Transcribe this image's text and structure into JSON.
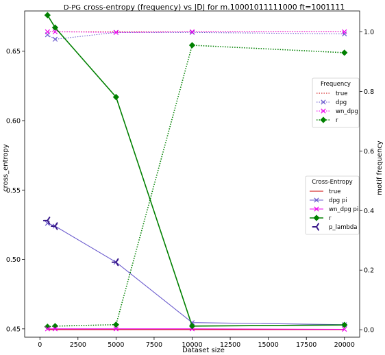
{
  "chart_data": {
    "type": "line",
    "title_prefix": "D-PG",
    "title": "cross-entropy (frequency) vs |D| for m.10001011111000 ft=1001111",
    "xlabel": "Dataset size",
    "ylabel_left": "cross_entropy",
    "ylabel_right": "motif frequency",
    "xlim": [
      -1000,
      21000
    ],
    "ylim_left": [
      0.444,
      0.679
    ],
    "ylim_right": [
      -0.025,
      1.07
    ],
    "x_ticks": [
      0,
      2500,
      5000,
      7500,
      10000,
      12500,
      15000,
      17500,
      20000
    ],
    "y_ticks_left": [
      0.45,
      0.5,
      0.55,
      0.6,
      0.65
    ],
    "y_ticks_right": [
      0.0,
      0.2,
      0.4,
      0.6,
      0.8,
      1.0
    ],
    "legend_frequency": {
      "title": "Frequency",
      "placement": "center-right",
      "series": [
        {
          "name": "true",
          "color": "#cc0000",
          "dash": "dotted",
          "marker": "none",
          "x": [
            500,
            1000,
            5000,
            10000,
            20000
          ],
          "values": [
            1.0,
            1.0,
            1.0,
            1.0,
            1.0
          ]
        },
        {
          "name": "dpg",
          "color": "#6a5acd",
          "dash": "dotted",
          "marker": "x",
          "x": [
            500,
            1000,
            5000,
            10000,
            20000
          ],
          "values": [
            0.99,
            0.975,
            0.998,
            0.998,
            0.993
          ]
        },
        {
          "name": "wn_dpg",
          "color": "#ee00ee",
          "dash": "dotted",
          "marker": "x",
          "x": [
            500,
            1000,
            5000,
            10000,
            20000
          ],
          "values": [
            1.0,
            1.0,
            0.998,
            1.0,
            1.0
          ]
        },
        {
          "name": "r",
          "color": "#008000",
          "dash": "dotted",
          "marker": "diamond",
          "x": [
            500,
            1000,
            5000,
            10000,
            20000
          ],
          "values": [
            0.01,
            0.012,
            0.017,
            0.955,
            0.93
          ]
        }
      ]
    },
    "legend_cross_entropy": {
      "title": "Cross-Entropy",
      "placement": "center-right",
      "series": [
        {
          "name": "true",
          "color": "#cc0000",
          "dash": "solid",
          "marker": "none",
          "x": [
            500,
            1000,
            5000,
            10000,
            20000
          ],
          "values": [
            0.4495,
            0.4495,
            0.4495,
            0.4495,
            0.4495
          ]
        },
        {
          "name": "dpg pi",
          "color": "#6a5acd",
          "dash": "solid",
          "marker": "x",
          "x": [
            500,
            1000,
            5000,
            10000,
            20000
          ],
          "values": [
            0.526,
            0.524,
            0.498,
            0.4545,
            0.453
          ]
        },
        {
          "name": "wn_dpg pi",
          "color": "#ee00ee",
          "dash": "solid",
          "marker": "x",
          "x": [
            500,
            1000,
            5000,
            10000,
            20000
          ],
          "values": [
            0.45,
            0.45,
            0.45,
            0.45,
            0.4497
          ]
        },
        {
          "name": "r",
          "color": "#008000",
          "dash": "solid",
          "marker": "diamond",
          "x": [
            500,
            1000,
            5000,
            10000,
            20000
          ],
          "values": [
            0.676,
            0.667,
            0.617,
            0.452,
            0.4528
          ]
        },
        {
          "name": "p_lambda",
          "color": "#3a1a8a",
          "dash": "none",
          "marker": "tri",
          "x": [
            500,
            1000,
            5000
          ],
          "values": [
            0.528,
            0.524,
            0.498
          ]
        }
      ]
    }
  }
}
